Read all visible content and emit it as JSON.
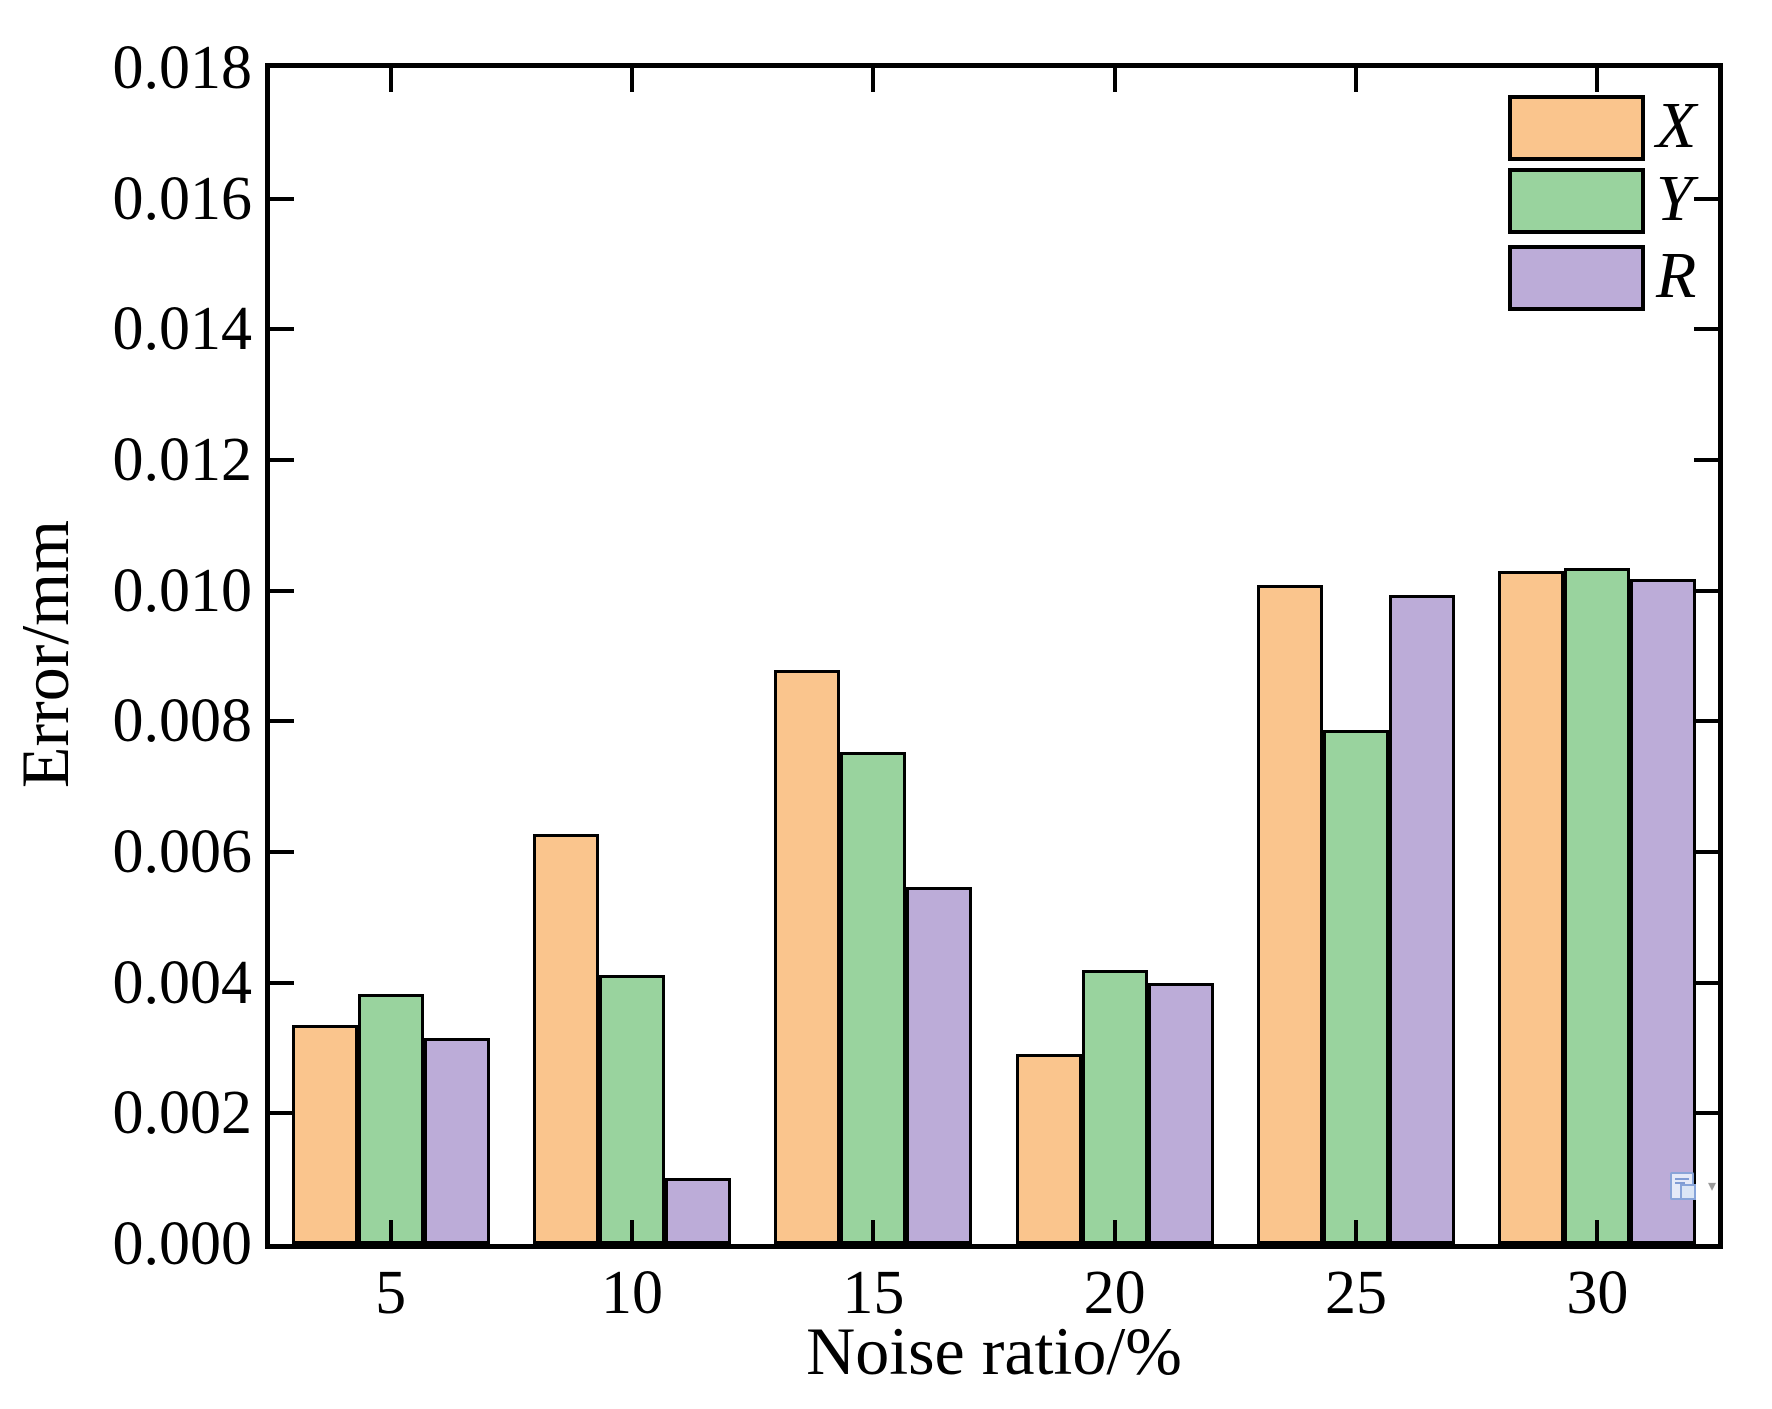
{
  "chart_data": {
    "type": "bar",
    "title": "",
    "xlabel": "Noise ratio/%",
    "ylabel": "Error/mm",
    "categories": [
      "5",
      "10",
      "15",
      "20",
      "25",
      "30"
    ],
    "series": [
      {
        "name": "X",
        "color": "#FAC58D",
        "values": [
          0.00335,
          0.00627,
          0.00878,
          0.00291,
          0.01008,
          0.0103
        ]
      },
      {
        "name": "Y",
        "color": "#99D39E",
        "values": [
          0.00383,
          0.00412,
          0.00753,
          0.0042,
          0.00786,
          0.01035
        ]
      },
      {
        "name": "R",
        "color": "#BCACD8",
        "values": [
          0.00316,
          0.00101,
          0.00547,
          0.00399,
          0.00993,
          0.01018
        ]
      }
    ],
    "ylim": [
      0,
      0.018
    ],
    "ytick_step": 0.002,
    "ytick_labels": [
      "0.000",
      "0.002",
      "0.004",
      "0.006",
      "0.008",
      "0.010",
      "0.012",
      "0.014",
      "0.016",
      "0.018"
    ],
    "xtick_labels": [
      "5",
      "10",
      "15",
      "20",
      "25",
      "30"
    ],
    "grid": false,
    "bar_edge_color": "#000000",
    "legend_position": "top-right",
    "legend_entries": [
      "X",
      "Y",
      "R"
    ]
  },
  "overlay": {
    "paste_options_icon": "paste-options-clipboard-icon",
    "dropdown_icon": "chevron-down-icon",
    "dropdown_glyph": "▾"
  }
}
